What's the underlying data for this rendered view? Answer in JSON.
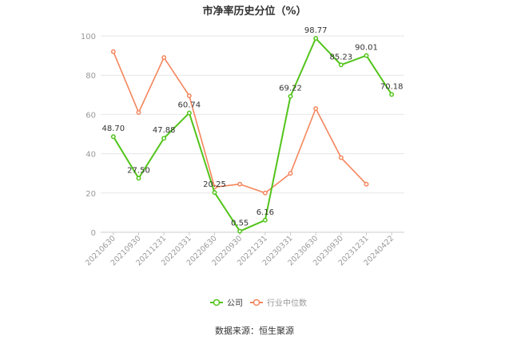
{
  "chart_data": {
    "type": "line",
    "title": "市净率历史分位（%）",
    "categories": [
      "20210630",
      "20210930",
      "20211231",
      "20220331",
      "20220630",
      "20220930",
      "20221231",
      "20230331",
      "20230630",
      "20230930",
      "20231231",
      "20240422"
    ],
    "series": [
      {
        "name": "公司",
        "color": "#52c41a",
        "values": [
          48.7,
          27.5,
          47.88,
          60.74,
          20.25,
          0.55,
          6.16,
          69.22,
          98.77,
          85.23,
          90.01,
          70.18
        ],
        "labels": [
          "48.70",
          "27.50",
          "47.88",
          "60.74",
          "20.25",
          "0.55",
          "6.16",
          "69.22",
          "98.77",
          "85.23",
          "90.01",
          "70.18"
        ]
      },
      {
        "name": "行业中位数",
        "color": "#f4855c",
        "values": [
          92,
          61,
          89,
          69.5,
          23,
          24.5,
          20,
          30,
          63,
          38,
          24.5,
          null
        ]
      }
    ],
    "ylim": [
      0,
      100
    ],
    "yticks": [
      0,
      20,
      40,
      60,
      80,
      100
    ],
    "grid": true,
    "legend_position": "bottom"
  },
  "source": "数据来源：恒生聚源"
}
